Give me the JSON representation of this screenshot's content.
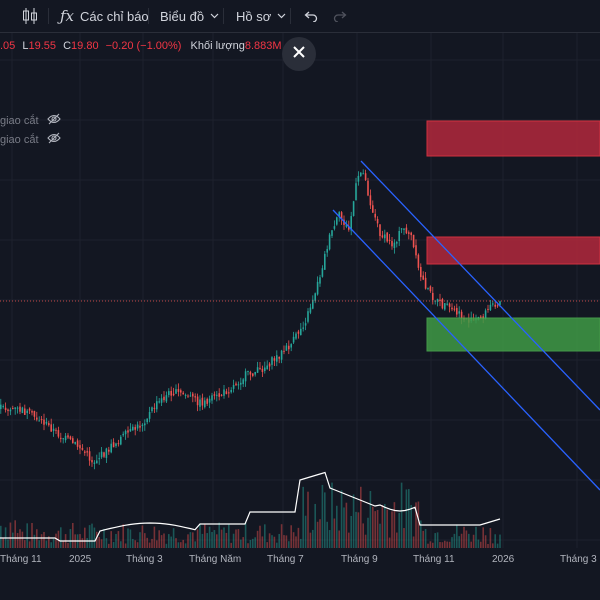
{
  "toolbar": {
    "indicators_label": "Các chỉ báo",
    "chart_label": "Biểu đồ",
    "profile_label": "Hồ sơ"
  },
  "legend": {
    "open_partial": ".05",
    "low_label": "L",
    "low_value": "19.55",
    "close_label": "C",
    "close_value": "19.80",
    "change": "−0.20 (−1.00%)",
    "volume_label": "Khối lượng",
    "volume_value": "8.883M",
    "indicator_rows": [
      "giao cắt",
      "giao cắt"
    ]
  },
  "colors": {
    "background": "#131722",
    "up": "#26a69a",
    "down": "#ef5350",
    "channel": "#2962ff",
    "resistance_zone": "#b2283c",
    "support_zone": "#3f9a46",
    "volume_ma": "#ffffff"
  },
  "icons": [
    "candlestick-icon",
    "fx-icon",
    "chevron-down-icon",
    "undo-icon",
    "redo-icon",
    "close-icon",
    "eye-off-icon"
  ],
  "xaxis": {
    "labels": [
      "Tháng 11",
      "2025",
      "Tháng 3",
      "Tháng Năm",
      "Tháng 7",
      "Tháng 9",
      "Tháng 11",
      "2026",
      "Tháng 3"
    ]
  }
}
